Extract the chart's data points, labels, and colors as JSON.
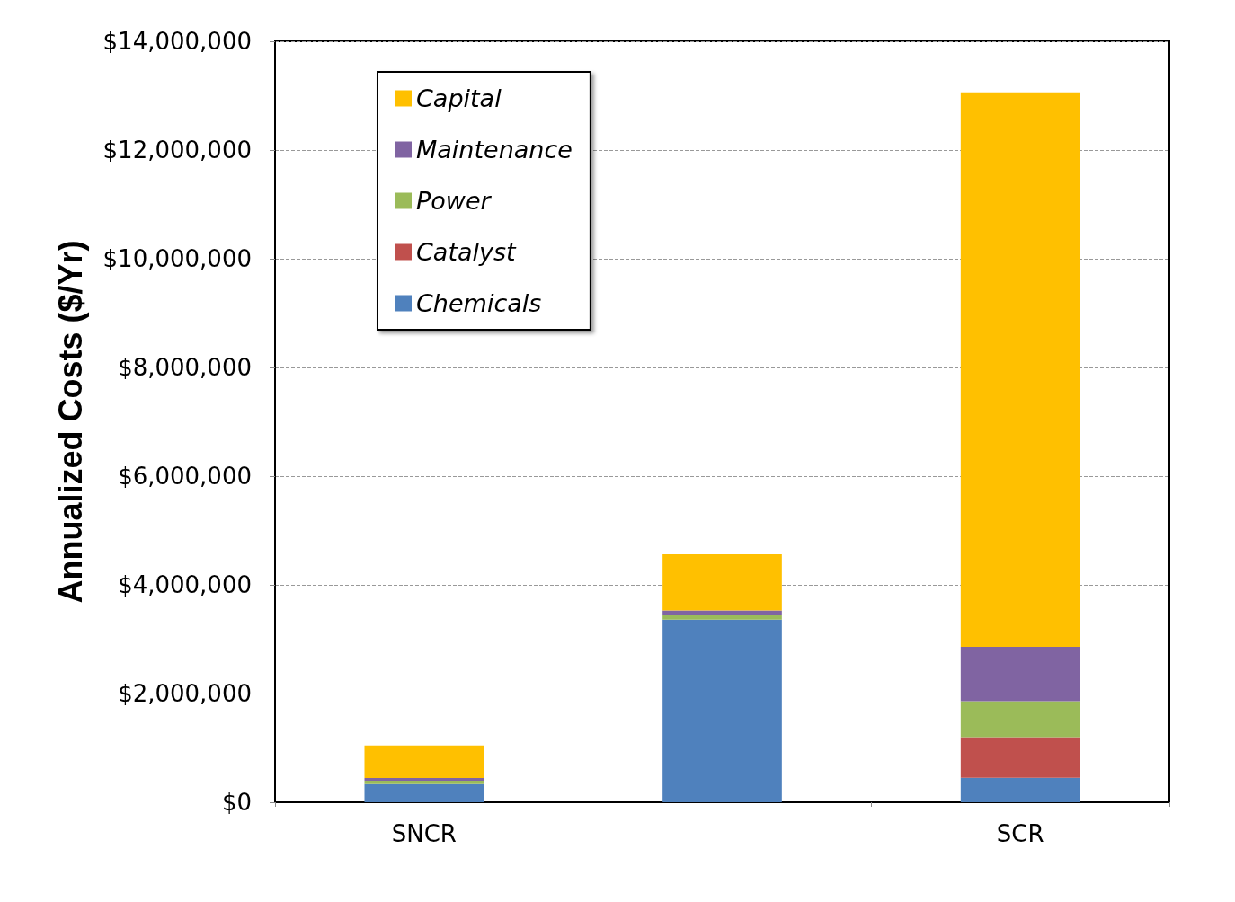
{
  "chart_data": {
    "type": "bar",
    "stacked": true,
    "ylabel": "Annualized Costs ($/Yr)",
    "categories": [
      "SNCR",
      null,
      "SCR"
    ],
    "series": [
      {
        "name": "Chemicals",
        "color": "#4f81bd",
        "values": [
          335000,
          3360000,
          450000
        ]
      },
      {
        "name": "Catalyst",
        "color": "#c0504d",
        "values": [
          0,
          0,
          750000
        ]
      },
      {
        "name": "Power",
        "color": "#9bbb59",
        "values": [
          60000,
          80000,
          660000
        ]
      },
      {
        "name": "Maintenance",
        "color": "#8064a2",
        "values": [
          50000,
          90000,
          1000000
        ]
      },
      {
        "name": "Capital",
        "color": "#ffc000",
        "values": [
          600000,
          1030000,
          10200000
        ]
      }
    ],
    "ylim": [
      0,
      14000000
    ],
    "yticks": [
      {
        "value": 0,
        "label": "$0"
      },
      {
        "value": 2000000,
        "label": "$2,000,000"
      },
      {
        "value": 4000000,
        "label": "$4,000,000"
      },
      {
        "value": 6000000,
        "label": "$6,000,000"
      },
      {
        "value": 8000000,
        "label": "$8,000,000"
      },
      {
        "value": 10000000,
        "label": "$10,000,000"
      },
      {
        "value": 12000000,
        "label": "$12,000,000"
      },
      {
        "value": 14000000,
        "label": "$14,000,000"
      }
    ],
    "grid": "y",
    "legend": "top left"
  }
}
